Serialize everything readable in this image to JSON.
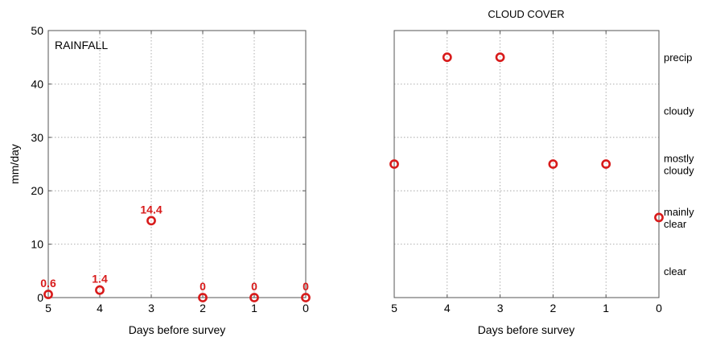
{
  "chart_data": [
    {
      "type": "scatter",
      "title": "",
      "panel_label": "RAINFALL",
      "xlabel": "Days before survey",
      "ylabel": "mm/day",
      "xlim": [
        5,
        0
      ],
      "ylim": [
        0,
        50
      ],
      "xticks": [
        5,
        4,
        3,
        2,
        1,
        0
      ],
      "yticks": [
        0,
        10,
        20,
        30,
        40,
        50
      ],
      "grid": true,
      "color": "#d81b1b",
      "points": [
        {
          "x": 5,
          "y": 0.6,
          "label": "0.6"
        },
        {
          "x": 4,
          "y": 1.4,
          "label": "1.4"
        },
        {
          "x": 3,
          "y": 14.4,
          "label": "14.4"
        },
        {
          "x": 2,
          "y": 0,
          "label": "0"
        },
        {
          "x": 1,
          "y": 0,
          "label": "0"
        },
        {
          "x": 0,
          "y": 0,
          "label": "0"
        }
      ]
    },
    {
      "type": "scatter",
      "title": "CLOUD COVER",
      "xlabel": "Days before survey",
      "ylabel": "",
      "xlim": [
        5,
        0
      ],
      "xticks": [
        5,
        4,
        3,
        2,
        1,
        0
      ],
      "grid": true,
      "color": "#d81b1b",
      "categories": [
        "clear",
        "mainly clear",
        "mostly cloudy",
        "cloudy",
        "precip"
      ],
      "category_lines": [
        [
          "clear"
        ],
        [
          "mainly",
          "clear"
        ],
        [
          "mostly",
          "cloudy"
        ],
        [
          "cloudy"
        ],
        [
          "precip"
        ]
      ],
      "points": [
        {
          "x": 5,
          "y": "mostly cloudy"
        },
        {
          "x": 4,
          "y": "precip"
        },
        {
          "x": 3,
          "y": "precip"
        },
        {
          "x": 2,
          "y": "mostly cloudy"
        },
        {
          "x": 1,
          "y": "mostly cloudy"
        },
        {
          "x": 0,
          "y": "mainly clear"
        }
      ]
    }
  ]
}
